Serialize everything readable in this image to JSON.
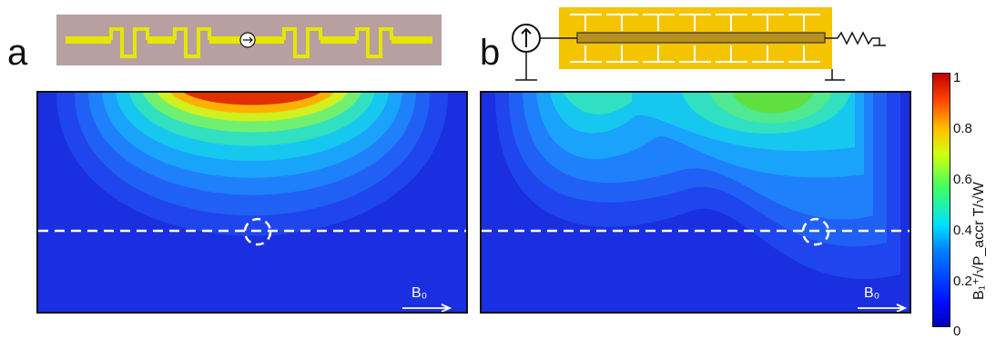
{
  "panels": {
    "a": {
      "letter": "a",
      "b0_label": "B₀"
    },
    "b": {
      "letter": "b",
      "b0_label": "B₀"
    }
  },
  "colorbar": {
    "ticks": [
      "0",
      "0.2",
      "0.4",
      "0.6",
      "0.8",
      "1"
    ],
    "label": "B₁⁺/√P_accr   T/√W"
  },
  "colors": {
    "field_background": "#1a2fe0",
    "schematic_a_background": "#b8a0a0",
    "schematic_a_conductor": "#e6e600",
    "schematic_b_background": "#f5c400",
    "dashed_line": "#ffffff"
  }
}
